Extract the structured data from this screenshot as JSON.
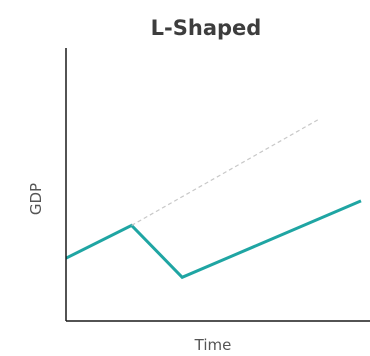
{
  "chart_data": {
    "type": "line",
    "title": "L-Shaped",
    "xlabel": "Time",
    "ylabel": "GDP",
    "grid": false,
    "legend": "none",
    "xlim": [
      0,
      10
    ],
    "ylim": [
      0,
      10
    ],
    "series": [
      {
        "style": "solid",
        "color": "#1fa5a3",
        "points": [
          [
            0,
            2.3
          ],
          [
            2.2,
            3.5
          ],
          [
            3.9,
            1.6
          ],
          [
            9.9,
            4.4
          ]
        ]
      },
      {
        "style": "dashed",
        "color": "#c8c8c8",
        "points": [
          [
            2.2,
            3.5
          ],
          [
            8.5,
            7.4
          ]
        ]
      }
    ]
  },
  "colors": {
    "title": "#3d3d3d",
    "axis": "#1a1a1a",
    "label": "#555555"
  }
}
